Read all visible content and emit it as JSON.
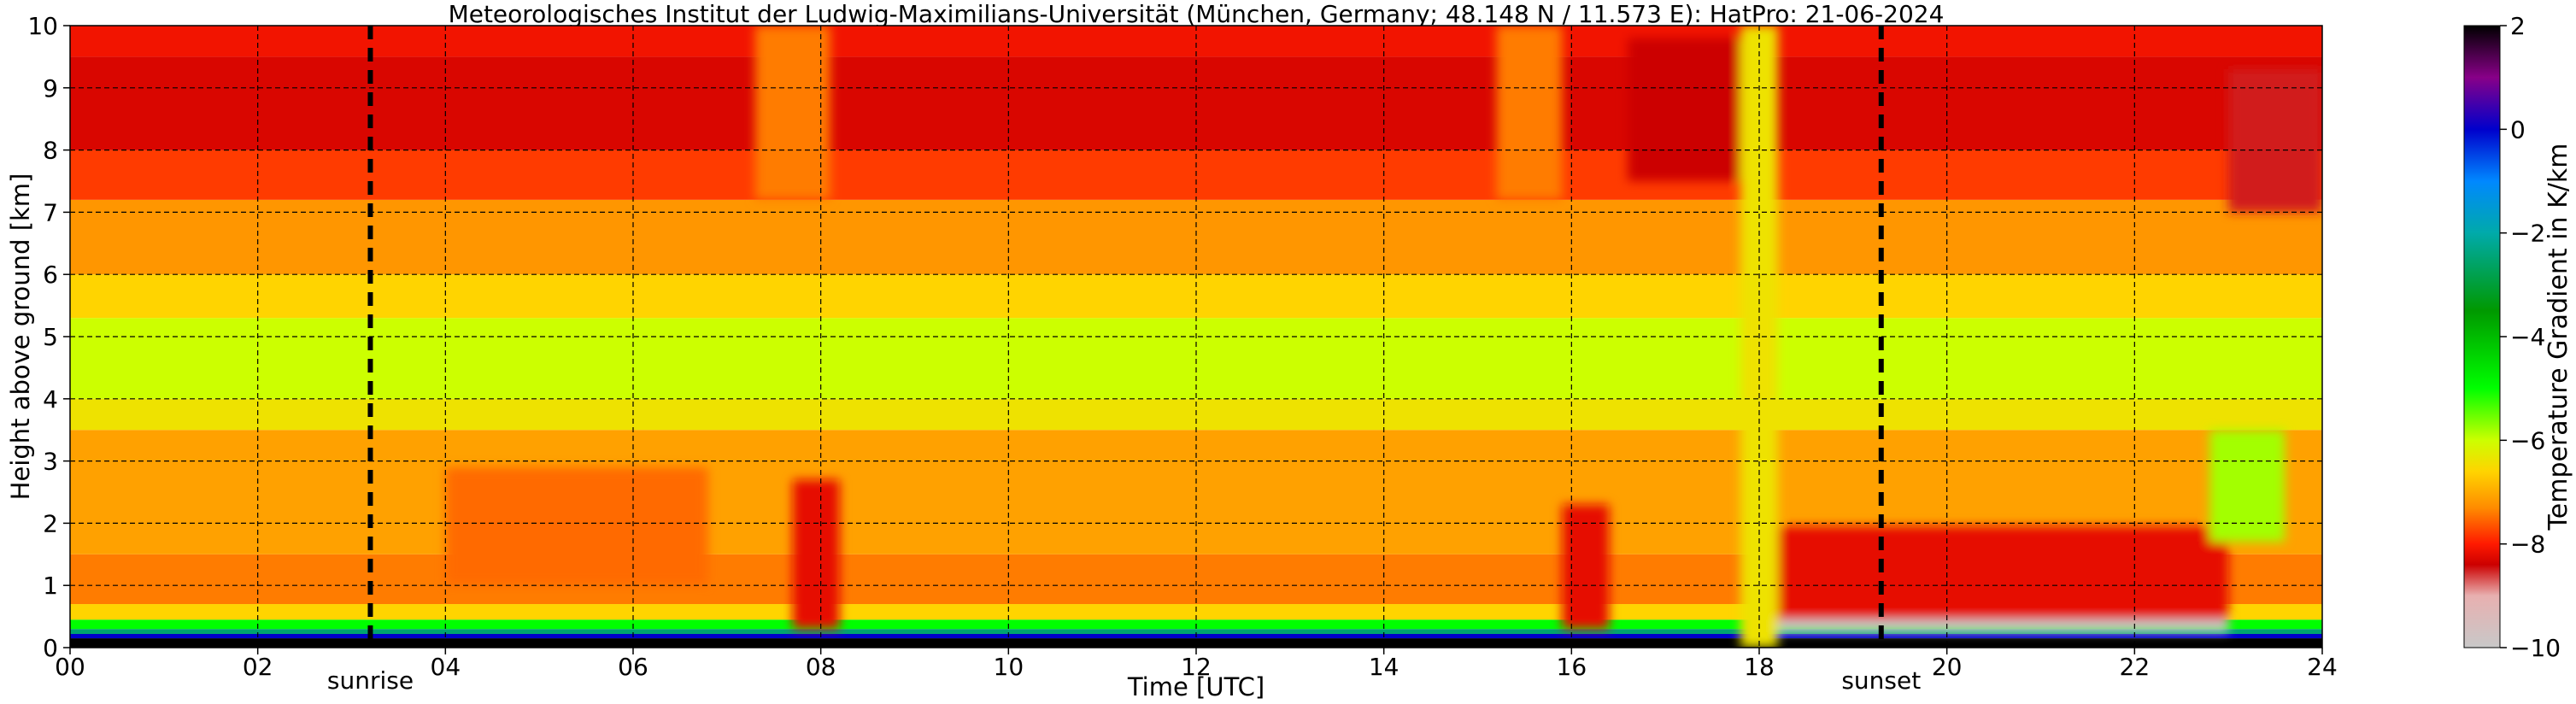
{
  "chart_data": {
    "type": "heatmap",
    "title": "Meteorologisches Institut der Ludwig-Maximilians-Universität (München, Germany; 48.148 N / 11.573 E):    HatPro: 21-06-2024",
    "xlabel": "Time [UTC]",
    "ylabel": "Height above ground [km]",
    "colorbar_label": "Temperature Gradient in K/km",
    "xlim": [
      0,
      24
    ],
    "ylim": [
      0,
      10
    ],
    "x_ticks": [
      "00",
      "02",
      "04",
      "06",
      "08",
      "10",
      "12",
      "14",
      "16",
      "18",
      "20",
      "22",
      "24"
    ],
    "y_ticks": [
      "0",
      "1",
      "2",
      "3",
      "4",
      "5",
      "6",
      "7",
      "8",
      "9",
      "10"
    ],
    "colorbar_ticks": [
      "2",
      "0",
      "−2",
      "−4",
      "−6",
      "−8",
      "−10"
    ],
    "colorbar_range": [
      -10,
      2
    ],
    "grid": true,
    "markers": [
      {
        "label": "sunrise",
        "x": 3.2
      },
      {
        "label": "sunset",
        "x": 19.3
      }
    ],
    "colorscale": [
      {
        "v": -10,
        "color": "#c8c8c8"
      },
      {
        "v": -9,
        "color": "#e8b0b0"
      },
      {
        "v": -8.4,
        "color": "#cc0000"
      },
      {
        "v": -8,
        "color": "#ff1a00"
      },
      {
        "v": -7.3,
        "color": "#ff8c00"
      },
      {
        "v": -6.6,
        "color": "#ffd400"
      },
      {
        "v": -6,
        "color": "#ccff00"
      },
      {
        "v": -5,
        "color": "#00ff00"
      },
      {
        "v": -3.5,
        "color": "#009900"
      },
      {
        "v": -2,
        "color": "#00aaaa"
      },
      {
        "v": -1,
        "color": "#0088ff"
      },
      {
        "v": 0,
        "color": "#0000cc"
      },
      {
        "v": 1,
        "color": "#880088"
      },
      {
        "v": 2,
        "color": "#000000"
      }
    ],
    "height_bands": [
      {
        "from": 0,
        "to": 0.15,
        "value": 2
      },
      {
        "from": 0.15,
        "to": 0.22,
        "value": 0
      },
      {
        "from": 0.22,
        "to": 0.3,
        "value": -2.5
      },
      {
        "from": 0.3,
        "to": 0.45,
        "value": -5
      },
      {
        "from": 0.45,
        "to": 0.7,
        "value": -6.6
      },
      {
        "from": 0.7,
        "to": 1.5,
        "value": -7.4
      },
      {
        "from": 1.5,
        "to": 3.5,
        "value": -7.1
      },
      {
        "from": 3.5,
        "to": 4.0,
        "value": -6.4
      },
      {
        "from": 4.0,
        "to": 5.3,
        "value": -6.0
      },
      {
        "from": 5.3,
        "to": 6.0,
        "value": -6.6
      },
      {
        "from": 6.0,
        "to": 7.2,
        "value": -7.2
      },
      {
        "from": 7.2,
        "to": 8.0,
        "value": -7.8
      },
      {
        "from": 8.0,
        "to": 9.5,
        "value": -8.3
      },
      {
        "from": 9.5,
        "to": 10.0,
        "value": -8.1
      }
    ],
    "features": [
      {
        "x0": 7.7,
        "x1": 8.2,
        "y0": 0.3,
        "y1": 2.7,
        "value": -8.2
      },
      {
        "x0": 15.9,
        "x1": 16.4,
        "y0": 0.3,
        "y1": 2.3,
        "value": -8.2
      },
      {
        "x0": 18.0,
        "x1": 23.0,
        "y0": 0.3,
        "y1": 1.95,
        "value": -8.2
      },
      {
        "x0": 18.0,
        "x1": 23.0,
        "y0": 0.25,
        "y1": 0.45,
        "value": -10
      },
      {
        "x0": 4.0,
        "x1": 6.8,
        "y0": 1.0,
        "y1": 2.9,
        "value": -7.5
      },
      {
        "x0": 22.8,
        "x1": 23.6,
        "y0": 1.7,
        "y1": 3.5,
        "value": -5.8
      },
      {
        "x0": 23.0,
        "x1": 24.0,
        "y0": 7.0,
        "y1": 9.3,
        "value": -8.5
      },
      {
        "x0": 16.6,
        "x1": 17.8,
        "y0": 7.5,
        "y1": 9.8,
        "value": -8.4
      },
      {
        "x0": 7.3,
        "x1": 8.1,
        "y0": 7.2,
        "y1": 10.0,
        "value": -7.4
      },
      {
        "x0": 15.2,
        "x1": 15.9,
        "y0": 7.2,
        "y1": 10.0,
        "value": -7.4
      },
      {
        "x0": 17.8,
        "x1": 18.2,
        "y0": 0.0,
        "y1": 10.0,
        "value": -6.4
      }
    ]
  }
}
